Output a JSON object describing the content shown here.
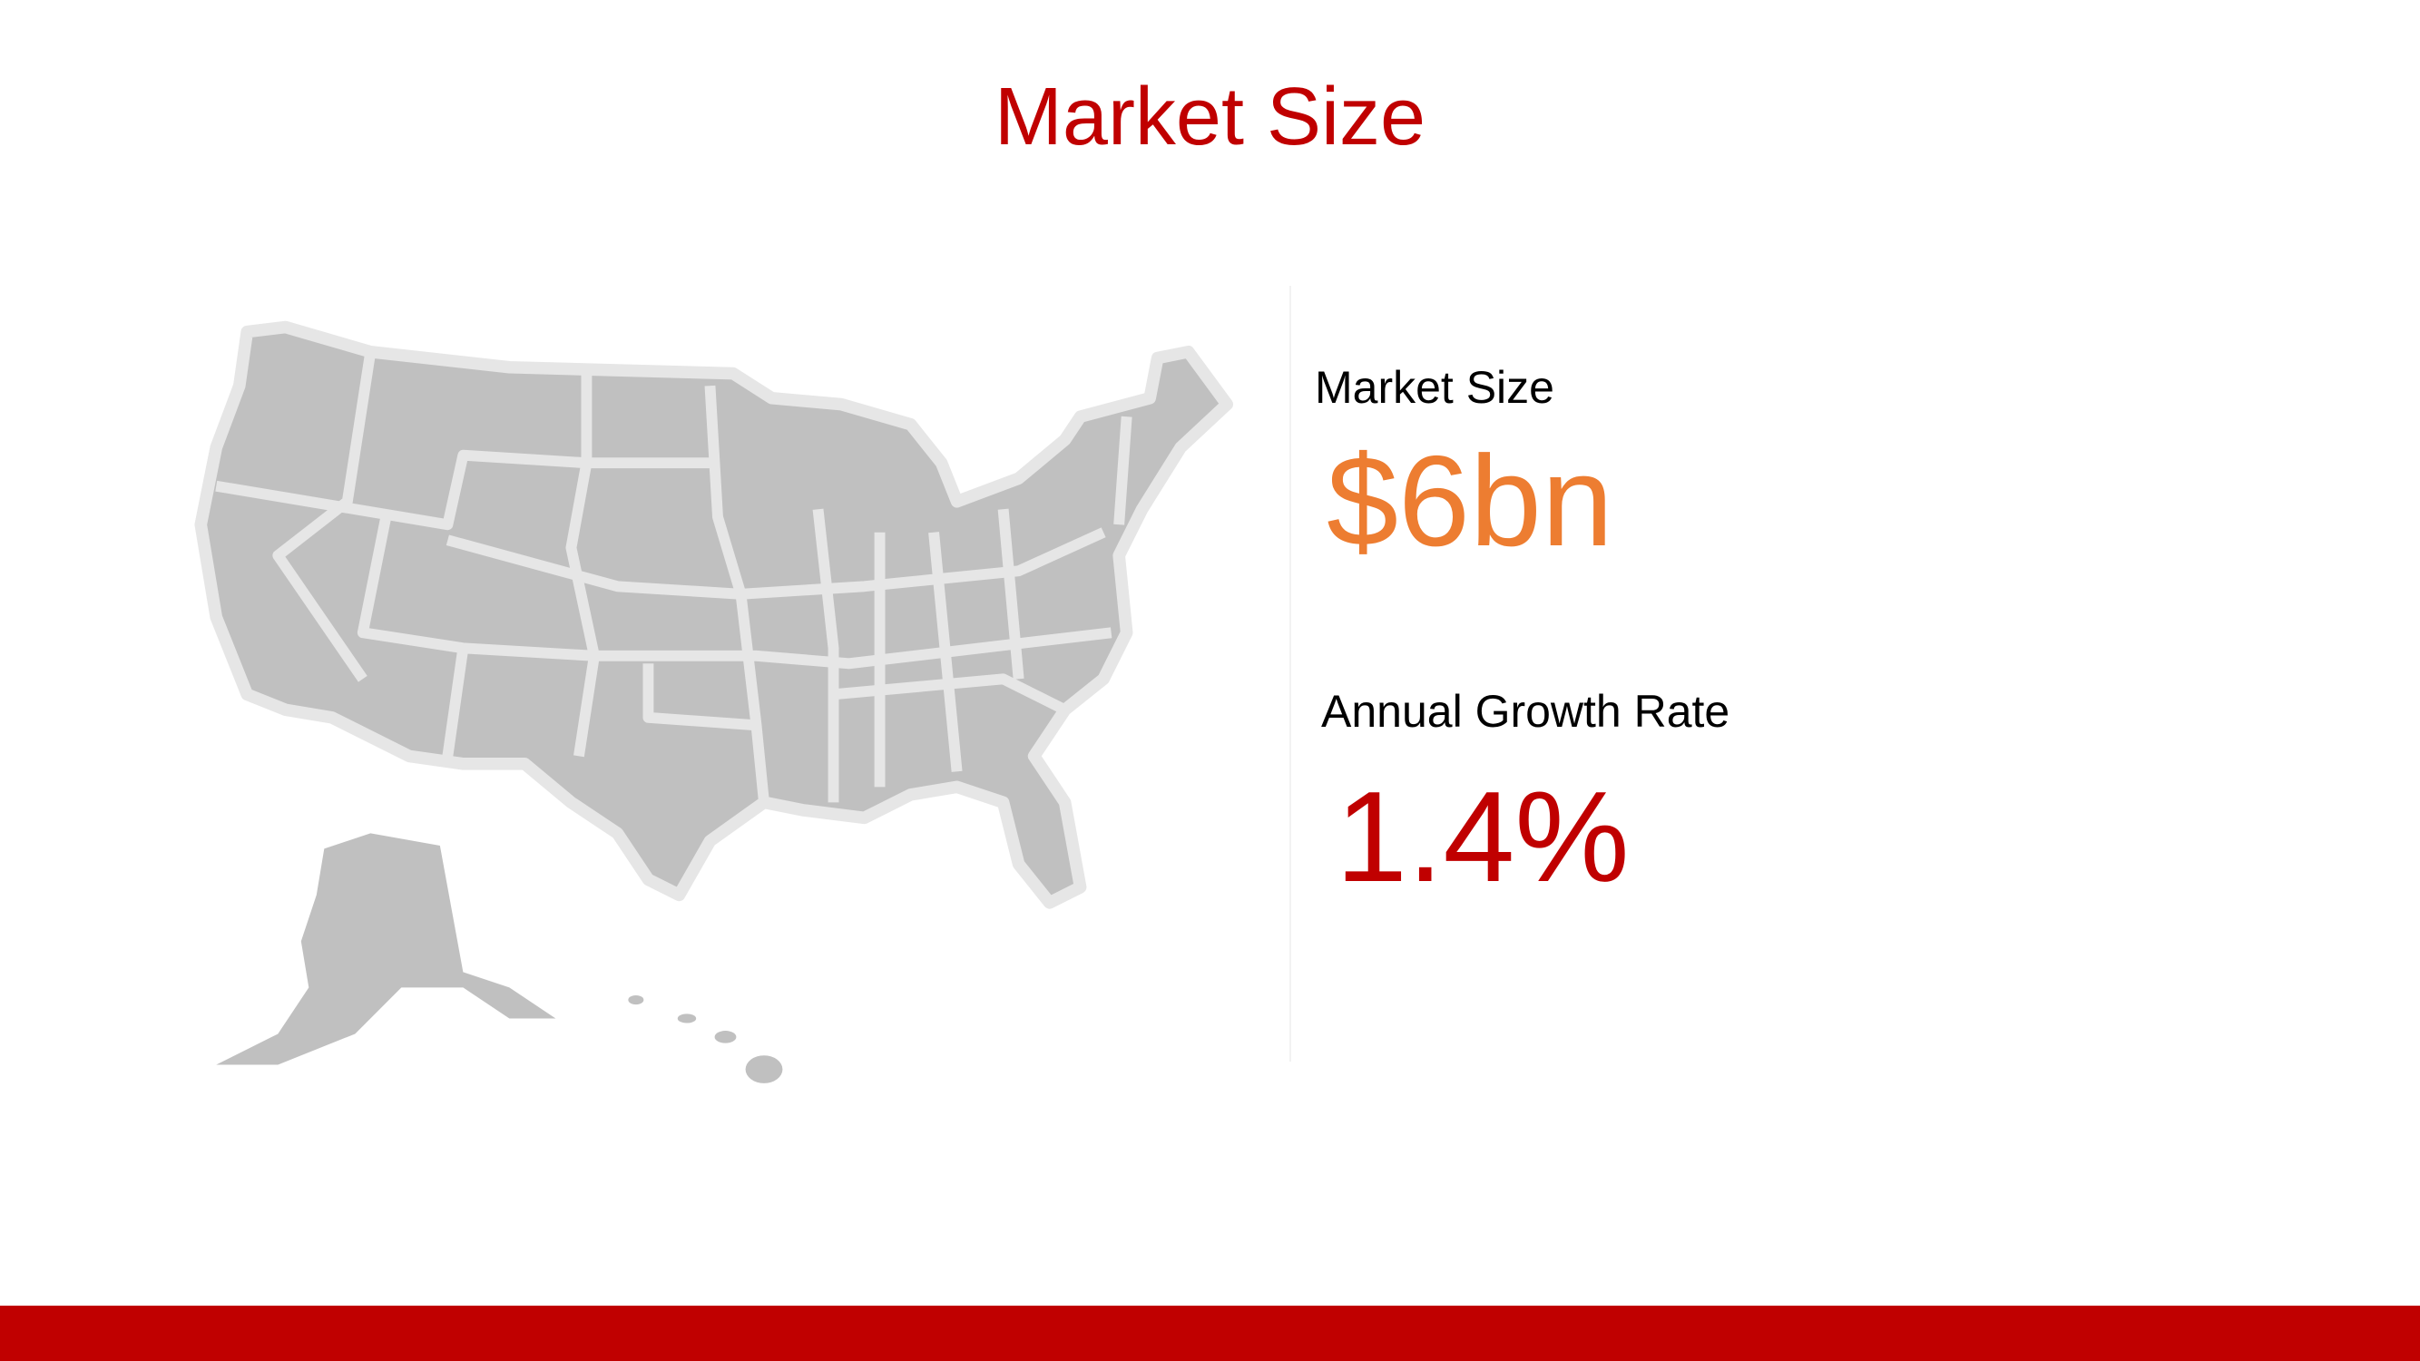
{
  "title": "Market Size",
  "stats": {
    "market_size_label": "Market Size",
    "market_size_value": "$6bn",
    "growth_label": "Annual Growth Rate",
    "growth_value": "1.4%"
  },
  "colors": {
    "accent_red": "#c00000",
    "value_orange": "#ed7d31",
    "map_fill": "#c0c0c0",
    "map_border": "#e6e6e6"
  },
  "map": {
    "icon": "us-map-icon"
  }
}
